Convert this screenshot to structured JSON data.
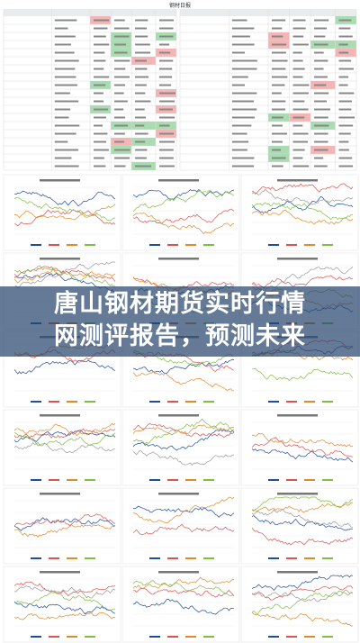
{
  "report": {
    "table_title": "钢材日报"
  },
  "banner": {
    "line1": "唐山钢材期货实时行情",
    "line2": "网测评报告，预测未来"
  }
}
